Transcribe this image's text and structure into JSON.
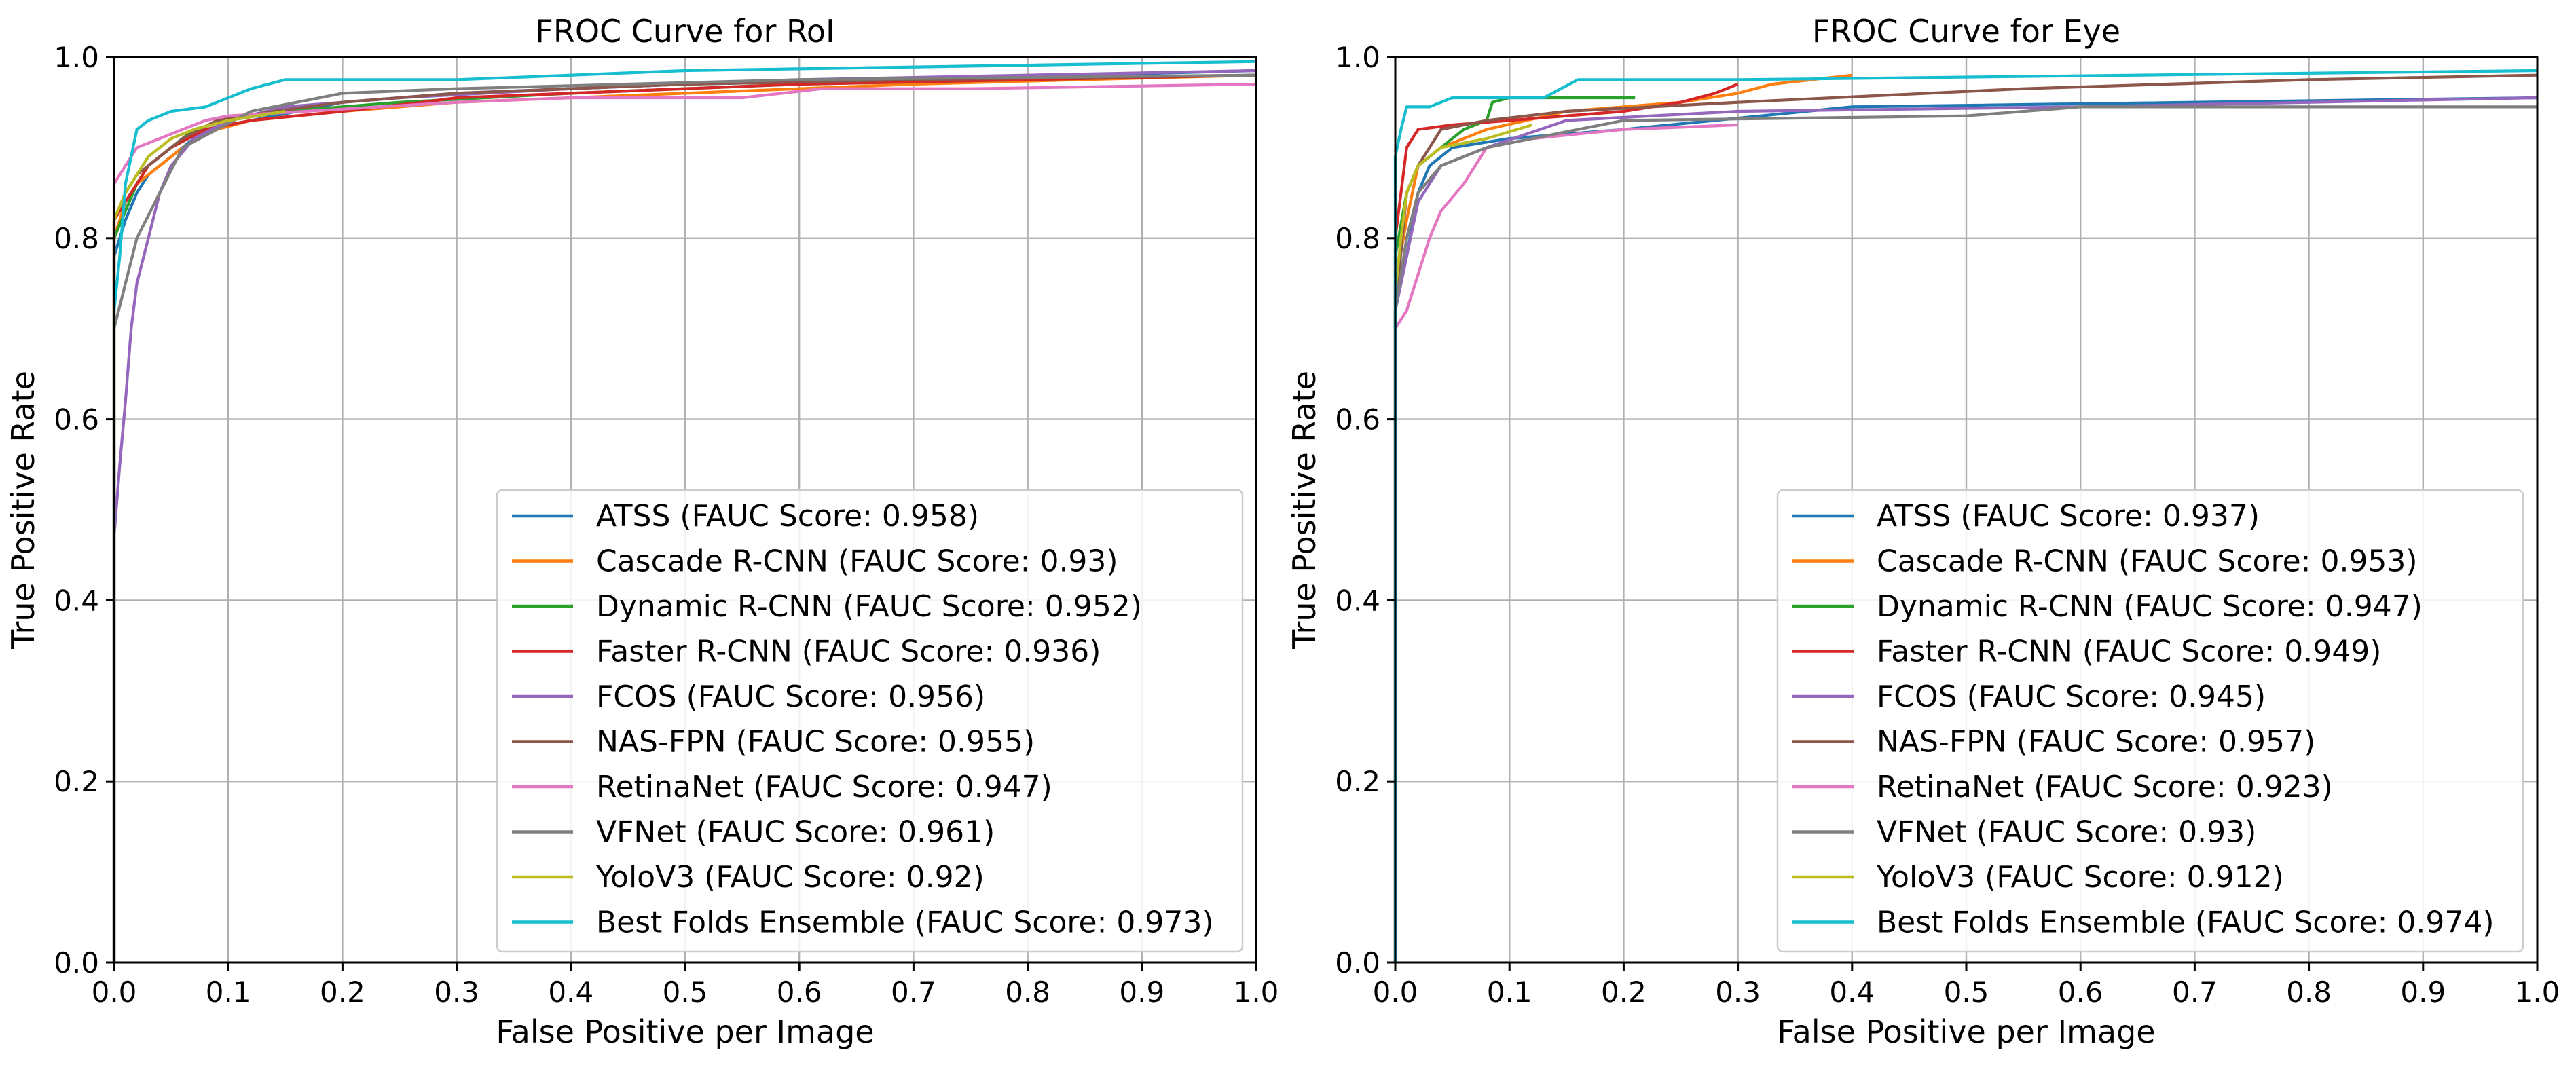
{
  "chart_data": [
    {
      "type": "line",
      "title": "FROC Curve for RoI",
      "xlabel": "False Positive per Image",
      "ylabel": "True Positive Rate",
      "xlim": [
        0,
        1
      ],
      "ylim": [
        0,
        1
      ],
      "xticks": [
        "0.0",
        "0.1",
        "0.2",
        "0.3",
        "0.4",
        "0.5",
        "0.6",
        "0.7",
        "0.8",
        "0.9",
        "1.0"
      ],
      "yticks": [
        "0.0",
        "0.2",
        "0.4",
        "0.6",
        "0.8",
        "1.0"
      ],
      "grid": true,
      "legend_position": "lower-right",
      "series": [
        {
          "name": "ATSS (FAUC Score: 0.958)",
          "color": "#1f77b4",
          "x": [
            0,
            0,
            0.01,
            0.02,
            0.03,
            0.05,
            0.08,
            0.12,
            0.2,
            0.3,
            0.5,
            0.7,
            1.0
          ],
          "y": [
            0,
            0.78,
            0.82,
            0.85,
            0.87,
            0.89,
            0.92,
            0.93,
            0.95,
            0.96,
            0.97,
            0.975,
            0.985
          ]
        },
        {
          "name": "Cascade R-CNN (FAUC Score: 0.93)",
          "color": "#ff7f0e",
          "x": [
            0,
            0,
            0.01,
            0.02,
            0.04,
            0.06,
            0.09,
            0.12,
            0.2,
            0.3,
            0.5,
            0.7,
            1.0
          ],
          "y": [
            0,
            0.8,
            0.84,
            0.86,
            0.88,
            0.9,
            0.92,
            0.93,
            0.94,
            0.95,
            0.96,
            0.97,
            0.98
          ]
        },
        {
          "name": "Dynamic R-CNN (FAUC Score: 0.952)",
          "color": "#2ca02c",
          "x": [
            0,
            0,
            0.01,
            0.02,
            0.03,
            0.05,
            0.07,
            0.1,
            0.15,
            0.25,
            0.4,
            0.6,
            1.0
          ],
          "y": [
            0,
            0.8,
            0.83,
            0.86,
            0.88,
            0.9,
            0.92,
            0.93,
            0.94,
            0.95,
            0.96,
            0.97,
            0.98
          ]
        },
        {
          "name": "Faster R-CNN (FAUC Score: 0.936)",
          "color": "#d62728",
          "x": [
            0,
            0,
            0.01,
            0.02,
            0.03,
            0.05,
            0.08,
            0.12,
            0.2,
            0.27,
            0.3,
            0.4,
            0.6,
            1.0
          ],
          "y": [
            0,
            0.82,
            0.84,
            0.86,
            0.88,
            0.9,
            0.92,
            0.93,
            0.94,
            0.95,
            0.955,
            0.96,
            0.97,
            0.98
          ]
        },
        {
          "name": "FCOS (FAUC Score: 0.956)",
          "color": "#9467bd",
          "x": [
            0,
            0,
            0.005,
            0.01,
            0.015,
            0.02,
            0.03,
            0.04,
            0.05,
            0.07,
            0.1,
            0.15,
            0.25,
            0.4,
            0.6,
            1.0
          ],
          "y": [
            0,
            0.47,
            0.55,
            0.62,
            0.7,
            0.75,
            0.8,
            0.85,
            0.88,
            0.91,
            0.93,
            0.945,
            0.955,
            0.965,
            0.975,
            0.985
          ]
        },
        {
          "name": "NAS-FPN (FAUC Score: 0.955)",
          "color": "#8c564b",
          "x": [
            0,
            0,
            0.01,
            0.02,
            0.04,
            0.06,
            0.09,
            0.14,
            0.2,
            0.3,
            0.5,
            0.7,
            1.0
          ],
          "y": [
            0,
            0.82,
            0.85,
            0.87,
            0.89,
            0.91,
            0.93,
            0.94,
            0.95,
            0.96,
            0.97,
            0.975,
            0.98
          ]
        },
        {
          "name": "RetinaNet (FAUC Score: 0.947)",
          "color": "#e377c2",
          "x": [
            0,
            0,
            0.01,
            0.02,
            0.04,
            0.06,
            0.08,
            0.1,
            0.3,
            0.4,
            0.55,
            0.62,
            0.75,
            1.0
          ],
          "y": [
            0,
            0.86,
            0.88,
            0.9,
            0.91,
            0.92,
            0.93,
            0.935,
            0.95,
            0.955,
            0.955,
            0.965,
            0.965,
            0.97
          ]
        },
        {
          "name": "VFNet (FAUC Score: 0.961)",
          "color": "#7f7f7f",
          "x": [
            0,
            0,
            0.01,
            0.02,
            0.04,
            0.06,
            0.09,
            0.12,
            0.2,
            0.3,
            0.45,
            0.6,
            1.0
          ],
          "y": [
            0,
            0.7,
            0.75,
            0.8,
            0.85,
            0.9,
            0.92,
            0.94,
            0.96,
            0.965,
            0.97,
            0.975,
            0.98
          ]
        },
        {
          "name": "YoloV3 (FAUC Score: 0.92)",
          "color": "#bcbd22",
          "x": [
            0,
            0,
            0.01,
            0.02,
            0.03,
            0.05,
            0.07,
            0.1,
            0.15
          ],
          "y": [
            0,
            0.82,
            0.85,
            0.87,
            0.89,
            0.91,
            0.92,
            0.93,
            0.94
          ]
        },
        {
          "name": "Best Folds Ensemble (FAUC Score: 0.973)",
          "color": "#17becf",
          "x": [
            0,
            0,
            0.005,
            0.01,
            0.02,
            0.03,
            0.05,
            0.08,
            0.12,
            0.15,
            0.3,
            0.5,
            1.0
          ],
          "y": [
            0,
            0.72,
            0.78,
            0.86,
            0.92,
            0.93,
            0.94,
            0.945,
            0.965,
            0.975,
            0.975,
            0.985,
            0.995
          ]
        }
      ]
    },
    {
      "type": "line",
      "title": "FROC Curve for Eye",
      "xlabel": "False Positive per Image",
      "ylabel": "True Positive Rate",
      "xlim": [
        0,
        1
      ],
      "ylim": [
        0,
        1
      ],
      "xticks": [
        "0.0",
        "0.1",
        "0.2",
        "0.3",
        "0.4",
        "0.5",
        "0.6",
        "0.7",
        "0.8",
        "0.9",
        "1.0"
      ],
      "yticks": [
        "0.0",
        "0.2",
        "0.4",
        "0.6",
        "0.8",
        "1.0"
      ],
      "grid": true,
      "legend_position": "lower-right",
      "series": [
        {
          "name": "ATSS (FAUC Score: 0.937)",
          "color": "#1f77b4",
          "x": [
            0,
            0,
            0.01,
            0.02,
            0.03,
            0.05,
            0.1,
            0.2,
            0.4,
            1.0
          ],
          "y": [
            0,
            0.72,
            0.78,
            0.85,
            0.88,
            0.9,
            0.91,
            0.92,
            0.945,
            0.955
          ]
        },
        {
          "name": "Cascade R-CNN (FAUC Score: 0.953)",
          "color": "#ff7f0e",
          "x": [
            0,
            0,
            0.01,
            0.02,
            0.04,
            0.08,
            0.15,
            0.25,
            0.3,
            0.33,
            0.4
          ],
          "y": [
            0,
            0.75,
            0.82,
            0.88,
            0.9,
            0.92,
            0.94,
            0.95,
            0.96,
            0.97,
            0.98
          ]
        },
        {
          "name": "Dynamic R-CNN (FAUC Score: 0.947)",
          "color": "#2ca02c",
          "x": [
            0,
            0,
            0.01,
            0.02,
            0.04,
            0.06,
            0.08,
            0.085,
            0.1,
            0.21
          ],
          "y": [
            0,
            0.78,
            0.85,
            0.88,
            0.9,
            0.92,
            0.93,
            0.95,
            0.955,
            0.955
          ]
        },
        {
          "name": "Faster R-CNN (FAUC Score: 0.949)",
          "color": "#d62728",
          "x": [
            0,
            0,
            0.01,
            0.02,
            0.05,
            0.1,
            0.2,
            0.25,
            0.28,
            0.3
          ],
          "y": [
            0,
            0.8,
            0.9,
            0.92,
            0.925,
            0.93,
            0.94,
            0.95,
            0.96,
            0.97
          ]
        },
        {
          "name": "FCOS (FAUC Score: 0.945)",
          "color": "#9467bd",
          "x": [
            0,
            0,
            0.01,
            0.02,
            0.04,
            0.08,
            0.15,
            0.3,
            0.6,
            1.0
          ],
          "y": [
            0,
            0.72,
            0.78,
            0.84,
            0.88,
            0.9,
            0.93,
            0.94,
            0.945,
            0.955
          ]
        },
        {
          "name": "NAS-FPN (FAUC Score: 0.957)",
          "color": "#8c564b",
          "x": [
            0,
            0,
            0.01,
            0.02,
            0.04,
            0.08,
            0.15,
            0.3,
            0.55,
            0.8,
            1.0
          ],
          "y": [
            0,
            0.72,
            0.85,
            0.88,
            0.92,
            0.93,
            0.94,
            0.95,
            0.965,
            0.975,
            0.98
          ]
        },
        {
          "name": "RetinaNet (FAUC Score: 0.923)",
          "color": "#e377c2",
          "x": [
            0,
            0,
            0.01,
            0.02,
            0.03,
            0.04,
            0.06,
            0.08,
            0.12,
            0.2,
            0.3
          ],
          "y": [
            0,
            0.7,
            0.72,
            0.76,
            0.8,
            0.83,
            0.86,
            0.9,
            0.91,
            0.92,
            0.925
          ]
        },
        {
          "name": "VFNet (FAUC Score: 0.93)",
          "color": "#7f7f7f",
          "x": [
            0,
            0,
            0.01,
            0.02,
            0.04,
            0.08,
            0.2,
            0.5,
            0.6,
            1.0
          ],
          "y": [
            0,
            0.72,
            0.8,
            0.85,
            0.88,
            0.9,
            0.93,
            0.935,
            0.945,
            0.945
          ]
        },
        {
          "name": "YoloV3 (FAUC Score: 0.912)",
          "color": "#bcbd22",
          "x": [
            0,
            0,
            0.005,
            0.01,
            0.02,
            0.04,
            0.08,
            0.12
          ],
          "y": [
            0,
            0.74,
            0.8,
            0.85,
            0.88,
            0.9,
            0.91,
            0.925
          ]
        },
        {
          "name": "Best Folds Ensemble (FAUC Score: 0.974)",
          "color": "#17becf",
          "x": [
            0,
            0,
            0.005,
            0.01,
            0.03,
            0.05,
            0.1,
            0.13,
            0.16,
            0.3,
            1.0
          ],
          "y": [
            0,
            0.89,
            0.92,
            0.945,
            0.945,
            0.955,
            0.955,
            0.955,
            0.975,
            0.975,
            0.985
          ]
        }
      ]
    }
  ]
}
